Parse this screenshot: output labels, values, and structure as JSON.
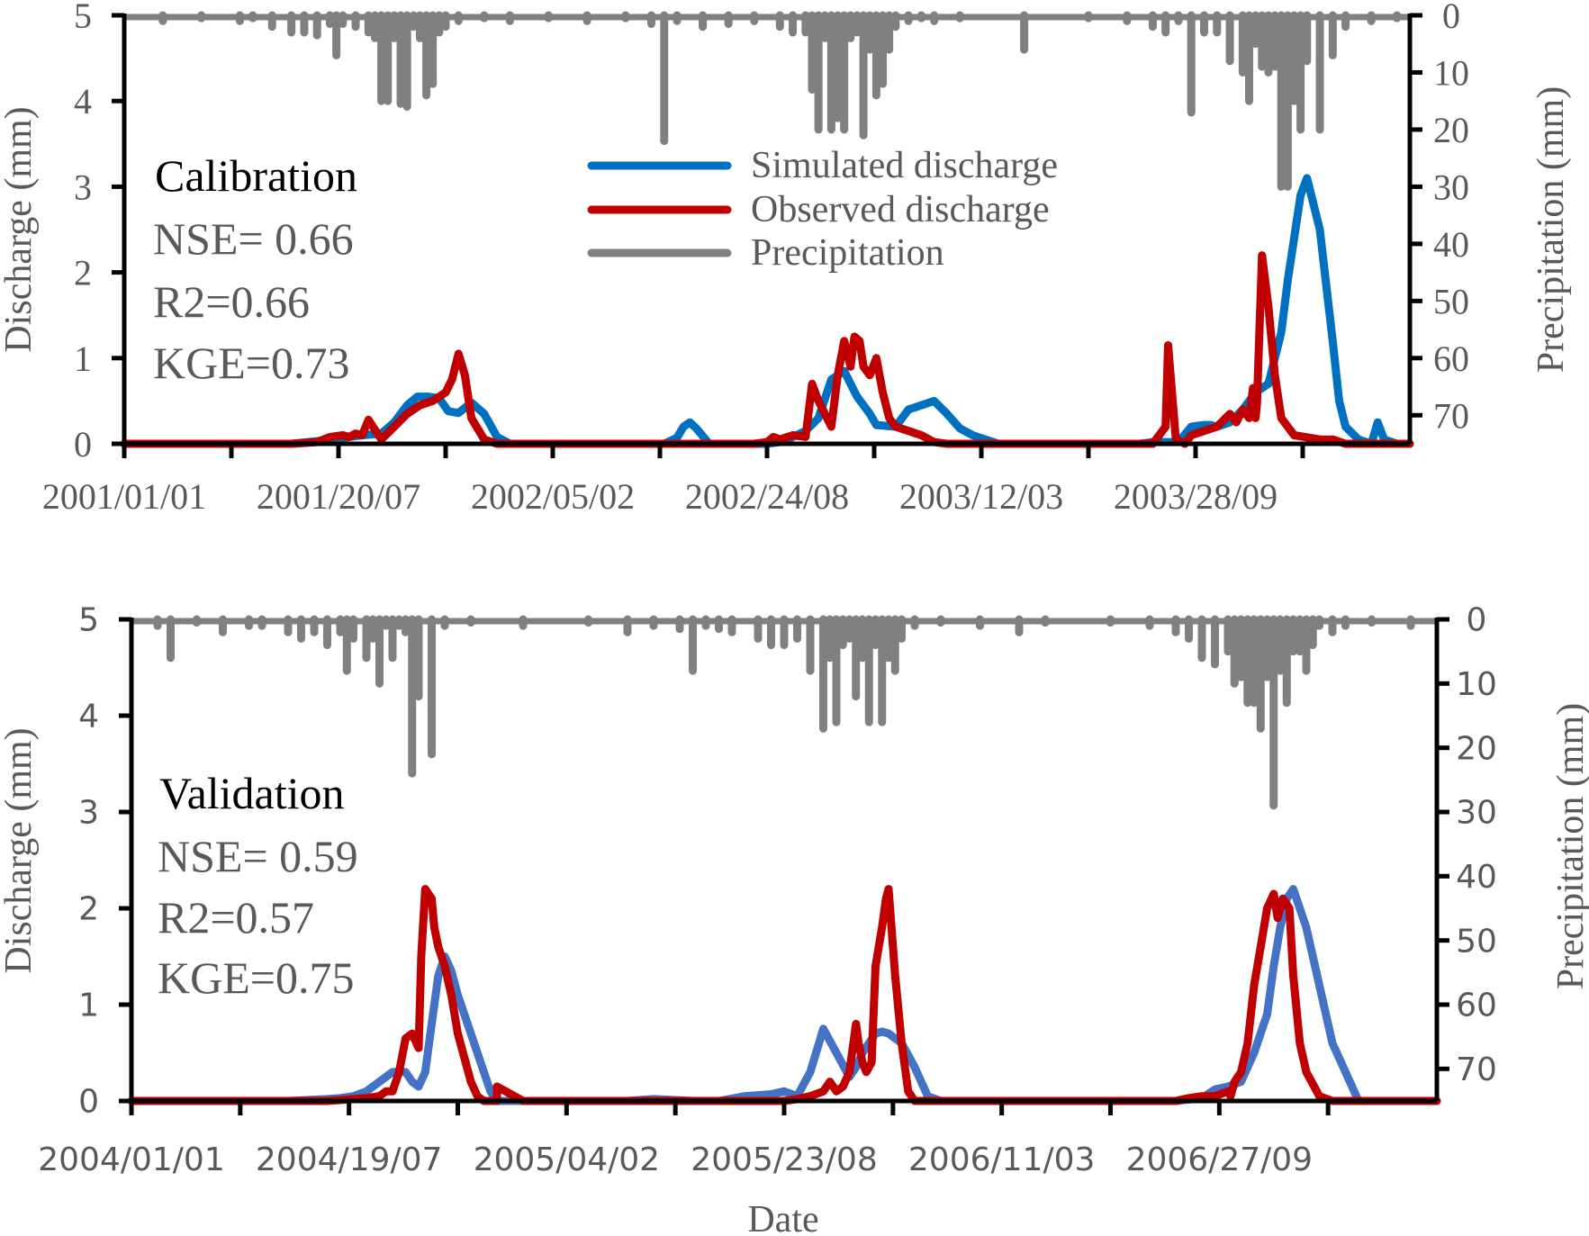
{
  "figure": {
    "shared_xlabel": "Date",
    "colors": {
      "simulated": "#0070C0",
      "simulated_validation": "#4472C4",
      "observed": "#C00000",
      "precipitation": "#808080",
      "axis": "#000000",
      "tick_label": "#595959",
      "title_text": "#000000",
      "metric_text": "#595959"
    },
    "legend": {
      "placement": "upper-center of top panel",
      "items": [
        {
          "label": "Simulated discharge",
          "series": "simulated"
        },
        {
          "label": "Observed discharge",
          "series": "observed"
        },
        {
          "label": "Precipitation",
          "series": "precipitation"
        }
      ]
    }
  },
  "chart_data": [
    {
      "type": "line",
      "panel": "Calibration",
      "title": "Calibration",
      "metrics": [
        "NSE= 0.66",
        "R2=0.66",
        "KGE=0.73"
      ],
      "xlabel": "",
      "ylabel": "Discharge (mm)",
      "y2label": "Precipitation (mm)",
      "ylim": [
        0,
        5
      ],
      "y2lim": [
        0,
        75
      ],
      "y2_inverted": true,
      "yticks": [
        "0",
        "1",
        "2",
        "3",
        "4",
        "5"
      ],
      "y2ticks": [
        "0",
        "10",
        "20",
        "30",
        "40",
        "50",
        "60",
        "70"
      ],
      "x_tick_count": 12,
      "x_tick_labels": [
        "2001/01/01",
        "2001/20/07",
        "2002/05/02",
        "2002/24/08",
        "2003/12/03",
        "2003/28/09"
      ],
      "x_tick_label_every": 2,
      "x_note": "x values are fraction of the plotted time span (0 = 2001/01/01)",
      "series": [
        {
          "name": "Simulated discharge",
          "color_key": "simulated",
          "x": [
            0,
            0.13,
            0.15,
            0.17,
            0.185,
            0.2,
            0.21,
            0.22,
            0.228,
            0.236,
            0.245,
            0.252,
            0.26,
            0.27,
            0.28,
            0.29,
            0.3,
            0.31,
            0.32,
            0.33,
            0.42,
            0.43,
            0.435,
            0.44,
            0.445,
            0.455,
            0.5,
            0.5,
            0.51,
            0.52,
            0.53,
            0.54,
            0.55,
            0.56,
            0.565,
            0.57,
            0.58,
            0.585,
            0.6,
            0.61,
            0.62,
            0.63,
            0.64,
            0.65,
            0.66,
            0.68,
            0.76,
            0.79,
            0.8,
            0.81,
            0.82,
            0.83,
            0.84,
            0.845,
            0.85,
            0.86,
            0.87,
            0.88,
            0.89,
            0.9,
            0.905,
            0.91,
            0.915,
            0.92,
            0.93,
            0.94,
            0.945,
            0.95,
            0.96,
            0.97,
            0.975,
            0.98,
            0.99,
            1.0
          ],
          "y": [
            0,
            0,
            0.03,
            0.07,
            0.1,
            0.12,
            0.25,
            0.45,
            0.55,
            0.55,
            0.53,
            0.38,
            0.36,
            0.48,
            0.35,
            0.08,
            0.0,
            0.0,
            0.0,
            0.0,
            0.0,
            0.07,
            0.2,
            0.25,
            0.18,
            0.0,
            0.0,
            0.0,
            0.02,
            0.08,
            0.15,
            0.3,
            0.75,
            0.85,
            0.7,
            0.55,
            0.35,
            0.22,
            0.2,
            0.4,
            0.45,
            0.5,
            0.35,
            0.18,
            0.1,
            0.0,
            0.0,
            0.0,
            0.02,
            0.02,
            0.02,
            0.2,
            0.22,
            0.22,
            0.2,
            0.25,
            0.4,
            0.6,
            0.7,
            1.3,
            1.9,
            2.4,
            2.9,
            3.1,
            2.5,
            1.2,
            0.5,
            0.2,
            0.05,
            0.0,
            0.25,
            0.05,
            0.0,
            0.0
          ]
        },
        {
          "name": "Observed discharge",
          "color_key": "observed",
          "x": [
            0,
            0.13,
            0.15,
            0.16,
            0.17,
            0.175,
            0.18,
            0.185,
            0.19,
            0.2,
            0.21,
            0.22,
            0.23,
            0.24,
            0.245,
            0.25,
            0.255,
            0.26,
            0.265,
            0.27,
            0.28,
            0.29,
            0.3,
            0.49,
            0.5,
            0.505,
            0.51,
            0.52,
            0.53,
            0.535,
            0.54,
            0.55,
            0.555,
            0.56,
            0.565,
            0.568,
            0.572,
            0.575,
            0.58,
            0.585,
            0.59,
            0.595,
            0.6,
            0.61,
            0.62,
            0.63,
            0.64,
            0.8,
            0.81,
            0.812,
            0.815,
            0.818,
            0.825,
            0.83,
            0.84,
            0.85,
            0.86,
            0.865,
            0.87,
            0.875,
            0.878,
            0.88,
            0.881,
            0.885,
            0.89,
            0.895,
            0.9,
            0.91,
            0.93,
            0.94,
            0.95,
            0.96,
            0.97,
            1.0
          ],
          "y": [
            0,
            0,
            0.02,
            0.08,
            0.1,
            0.08,
            0.12,
            0.1,
            0.28,
            0.05,
            0.2,
            0.35,
            0.45,
            0.5,
            0.55,
            0.6,
            0.75,
            1.05,
            0.8,
            0.3,
            0.05,
            0.0,
            0.0,
            0.0,
            0.02,
            0.08,
            0.05,
            0.1,
            0.08,
            0.7,
            0.5,
            0.2,
            0.8,
            1.2,
            0.9,
            1.25,
            1.2,
            0.9,
            0.8,
            1.0,
            0.6,
            0.3,
            0.2,
            0.15,
            0.1,
            0.02,
            0.0,
            0.0,
            0.2,
            1.15,
            0.6,
            0.05,
            0.0,
            0.1,
            0.15,
            0.2,
            0.35,
            0.25,
            0.4,
            0.3,
            0.65,
            0.3,
            0.45,
            2.2,
            1.6,
            0.8,
            0.3,
            0.1,
            0.05,
            0.05,
            0.0,
            0.0,
            0.0,
            0.0
          ]
        },
        {
          "name": "Precipitation",
          "color_key": "precipitation",
          "axis": "y2",
          "x": [
            0.03,
            0.06,
            0.09,
            0.1,
            0.115,
            0.13,
            0.14,
            0.15,
            0.16,
            0.165,
            0.17,
            0.18,
            0.19,
            0.195,
            0.2,
            0.205,
            0.21,
            0.215,
            0.22,
            0.225,
            0.23,
            0.235,
            0.24,
            0.245,
            0.25,
            0.26,
            0.28,
            0.3,
            0.33,
            0.36,
            0.39,
            0.41,
            0.42,
            0.43,
            0.45,
            0.47,
            0.49,
            0.51,
            0.52,
            0.53,
            0.535,
            0.54,
            0.545,
            0.55,
            0.555,
            0.56,
            0.565,
            0.57,
            0.575,
            0.58,
            0.585,
            0.59,
            0.595,
            0.6,
            0.61,
            0.62,
            0.63,
            0.65,
            0.7,
            0.75,
            0.78,
            0.8,
            0.81,
            0.82,
            0.83,
            0.84,
            0.85,
            0.86,
            0.87,
            0.875,
            0.88,
            0.885,
            0.89,
            0.895,
            0.9,
            0.905,
            0.91,
            0.915,
            0.92,
            0.93,
            0.94,
            0.95,
            0.97,
            0.99
          ],
          "y": [
            1,
            0.5,
            1,
            0.5,
            2,
            3,
            3,
            3.5,
            1.5,
            7,
            1.5,
            2,
            3,
            4,
            15,
            15,
            4,
            15.5,
            16,
            2,
            4,
            14,
            12,
            3,
            2,
            1,
            0.5,
            1,
            0.5,
            1,
            0.5,
            1.5,
            22,
            1,
            2,
            1.5,
            1,
            2,
            3,
            3,
            13,
            20,
            4,
            20,
            18,
            20,
            4,
            3,
            21,
            6,
            14,
            12,
            6,
            2,
            1,
            0.5,
            1,
            0.5,
            6,
            0.5,
            1,
            2,
            3,
            1,
            17,
            3,
            3,
            8,
            10,
            15,
            5,
            9,
            10,
            9,
            30,
            30,
            15,
            20,
            8,
            20,
            7,
            2,
            1,
            0.5
          ]
        }
      ]
    },
    {
      "type": "line",
      "panel": "Validation",
      "title": "Validation",
      "metrics": [
        "NSE= 0.59",
        "R2=0.57",
        "KGE=0.75"
      ],
      "xlabel": "Date",
      "ylabel": "Discharge (mm)",
      "y2label": "Precipitation (mm)",
      "ylim": [
        0,
        5
      ],
      "y2lim": [
        0,
        75
      ],
      "y2_inverted": true,
      "yticks": [
        "0",
        "1",
        "2",
        "3",
        "4",
        "5"
      ],
      "y2ticks": [
        "0",
        "10",
        "20",
        "30",
        "40",
        "50",
        "60",
        "70"
      ],
      "x_tick_count": 12,
      "x_tick_labels": [
        "2004/01/01",
        "2004/19/07",
        "2005/04/02",
        "2005/23/08",
        "2006/11/03",
        "2006/27/09"
      ],
      "x_tick_label_every": 2,
      "x_note": "x values are fraction of the plotted time span (0 = 2004/01/01)",
      "series": [
        {
          "name": "Simulated discharge",
          "color_key": "simulated_validation",
          "x": [
            0,
            0.12,
            0.15,
            0.16,
            0.17,
            0.18,
            0.19,
            0.2,
            0.21,
            0.215,
            0.22,
            0.225,
            0.23,
            0.235,
            0.24,
            0.245,
            0.25,
            0.26,
            0.27,
            0.275,
            0.28,
            0.3,
            0.38,
            0.4,
            0.43,
            0.45,
            0.47,
            0.49,
            0.5,
            0.51,
            0.52,
            0.53,
            0.54,
            0.55,
            0.555,
            0.56,
            0.565,
            0.57,
            0.575,
            0.58,
            0.59,
            0.6,
            0.61,
            0.62,
            0.8,
            0.82,
            0.83,
            0.84,
            0.85,
            0.86,
            0.87,
            0.875,
            0.88,
            0.885,
            0.89,
            0.9,
            0.91,
            0.92,
            0.93,
            0.94,
            0.95,
            0.96,
            1.0
          ],
          "y": [
            0,
            0,
            0.02,
            0.03,
            0.05,
            0.1,
            0.2,
            0.3,
            0.3,
            0.2,
            0.15,
            0.3,
            0.8,
            1.3,
            1.5,
            1.35,
            1.1,
            0.7,
            0.3,
            0.1,
            0.0,
            0.0,
            0.0,
            0.02,
            0.0,
            0.0,
            0.05,
            0.07,
            0.1,
            0.05,
            0.3,
            0.75,
            0.5,
            0.25,
            0.35,
            0.5,
            0.6,
            0.7,
            0.72,
            0.7,
            0.6,
            0.35,
            0.05,
            0.0,
            0.0,
            0.03,
            0.12,
            0.15,
            0.2,
            0.5,
            0.9,
            1.4,
            1.8,
            2.1,
            2.2,
            1.8,
            1.2,
            0.6,
            0.3,
            0.0,
            0.0,
            0.0,
            0.0
          ]
        },
        {
          "name": "Observed discharge",
          "color_key": "observed",
          "x": [
            0,
            0.15,
            0.17,
            0.18,
            0.19,
            0.195,
            0.2,
            0.205,
            0.21,
            0.215,
            0.22,
            0.222,
            0.225,
            0.23,
            0.232,
            0.235,
            0.24,
            0.245,
            0.25,
            0.26,
            0.265,
            0.27,
            0.28,
            0.28,
            0.3,
            0.5,
            0.51,
            0.52,
            0.53,
            0.535,
            0.54,
            0.545,
            0.55,
            0.555,
            0.557,
            0.56,
            0.563,
            0.567,
            0.57,
            0.575,
            0.578,
            0.58,
            0.585,
            0.59,
            0.595,
            0.6,
            0.605,
            0.61,
            0.62,
            0.8,
            0.81,
            0.82,
            0.83,
            0.84,
            0.842,
            0.845,
            0.85,
            0.855,
            0.86,
            0.865,
            0.87,
            0.875,
            0.878,
            0.882,
            0.887,
            0.89,
            0.895,
            0.9,
            0.91,
            0.92,
            0.93,
            1.0
          ],
          "y": [
            0,
            0,
            0.02,
            0.03,
            0.05,
            0.1,
            0.1,
            0.3,
            0.65,
            0.7,
            0.55,
            1.5,
            2.2,
            2.1,
            1.8,
            1.6,
            1.4,
            1.1,
            0.7,
            0.2,
            0.05,
            0.0,
            0.0,
            0.15,
            0.0,
            0.0,
            0.02,
            0.05,
            0.1,
            0.2,
            0.1,
            0.15,
            0.3,
            0.8,
            0.6,
            0.4,
            0.3,
            0.4,
            1.4,
            1.8,
            2.1,
            2.2,
            1.3,
            0.6,
            0.1,
            0.0,
            0.0,
            0.0,
            0.0,
            0.0,
            0.03,
            0.05,
            0.05,
            0.1,
            0.05,
            0.2,
            0.3,
            0.6,
            1.2,
            1.6,
            2.0,
            2.15,
            1.9,
            2.1,
            2.0,
            1.3,
            0.6,
            0.3,
            0.05,
            0.0,
            0.0,
            0.0
          ]
        },
        {
          "name": "Precipitation",
          "color_key": "precipitation",
          "axis": "y2",
          "x": [
            0.02,
            0.03,
            0.05,
            0.07,
            0.09,
            0.1,
            0.12,
            0.13,
            0.14,
            0.15,
            0.16,
            0.165,
            0.17,
            0.18,
            0.185,
            0.19,
            0.195,
            0.2,
            0.205,
            0.21,
            0.215,
            0.22,
            0.23,
            0.24,
            0.26,
            0.3,
            0.35,
            0.38,
            0.4,
            0.42,
            0.43,
            0.44,
            0.45,
            0.46,
            0.48,
            0.49,
            0.5,
            0.51,
            0.52,
            0.53,
            0.535,
            0.54,
            0.545,
            0.55,
            0.555,
            0.56,
            0.565,
            0.57,
            0.575,
            0.58,
            0.585,
            0.59,
            0.6,
            0.62,
            0.65,
            0.68,
            0.7,
            0.75,
            0.78,
            0.8,
            0.81,
            0.82,
            0.83,
            0.84,
            0.845,
            0.85,
            0.855,
            0.86,
            0.865,
            0.87,
            0.875,
            0.88,
            0.885,
            0.89,
            0.895,
            0.9,
            0.905,
            0.91,
            0.92,
            0.93,
            0.95,
            0.98
          ],
          "y": [
            1,
            6,
            0.5,
            2,
            1,
            1,
            2,
            3,
            2,
            4,
            2,
            8,
            3,
            6,
            3,
            10,
            1,
            6,
            1,
            2,
            24,
            12,
            21,
            1,
            0.5,
            1,
            0.5,
            2,
            1,
            1.5,
            8,
            1,
            1.5,
            2,
            3,
            4,
            4,
            3,
            8,
            17,
            6,
            16,
            4,
            3,
            12,
            6,
            16,
            4,
            16,
            6,
            8,
            3,
            1,
            0.5,
            1,
            2,
            0.5,
            0.5,
            1,
            2,
            3,
            6,
            7,
            5,
            10,
            9,
            13,
            13,
            17,
            9,
            29,
            8,
            13,
            5,
            5,
            8,
            4,
            1,
            2,
            1,
            0.5,
            1
          ]
        }
      ]
    }
  ]
}
